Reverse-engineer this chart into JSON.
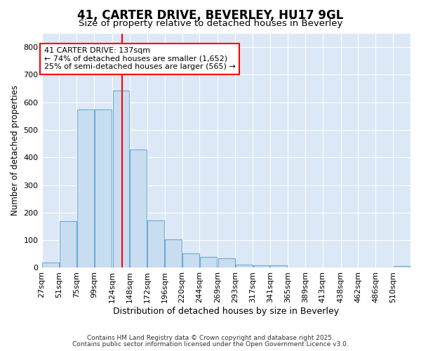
{
  "title": "41, CARTER DRIVE, BEVERLEY, HU17 9GL",
  "subtitle": "Size of property relative to detached houses in Beverley",
  "xlabel": "Distribution of detached houses by size in Beverley",
  "ylabel": "Number of detached properties",
  "annotation_line1": "41 CARTER DRIVE: 137sqm",
  "annotation_line2": "← 74% of detached houses are smaller (1,652)",
  "annotation_line3": "25% of semi-detached houses are larger (565) →",
  "bin_edges": [
    27,
    51,
    75,
    99,
    124,
    148,
    172,
    196,
    220,
    244,
    269,
    293,
    317,
    341,
    365,
    389,
    413,
    438,
    462,
    486,
    510
  ],
  "bin_labels": [
    "27sqm",
    "51sqm",
    "75sqm",
    "99sqm",
    "124sqm",
    "148sqm",
    "172sqm",
    "196sqm",
    "220sqm",
    "244sqm",
    "269sqm",
    "293sqm",
    "317sqm",
    "341sqm",
    "365sqm",
    "389sqm",
    "413sqm",
    "438sqm",
    "462sqm",
    "486sqm",
    "510sqm"
  ],
  "bar_heights": [
    20,
    168,
    575,
    575,
    643,
    430,
    172,
    103,
    52,
    40,
    33,
    12,
    10,
    9,
    0,
    0,
    0,
    0,
    0,
    0,
    6
  ],
  "bar_color": "#c9ddf0",
  "bar_edge_color": "#6aaad4",
  "redline_x": 137,
  "ylim": [
    0,
    850
  ],
  "yticks": [
    0,
    100,
    200,
    300,
    400,
    500,
    600,
    700,
    800
  ],
  "plot_bg_color": "#dce8f5",
  "fig_bg_color": "#ffffff",
  "grid_color": "#ffffff",
  "footer_line1": "Contains HM Land Registry data © Crown copyright and database right 2025.",
  "footer_line2": "Contains public sector information licensed under the Open Government Licence v3.0."
}
